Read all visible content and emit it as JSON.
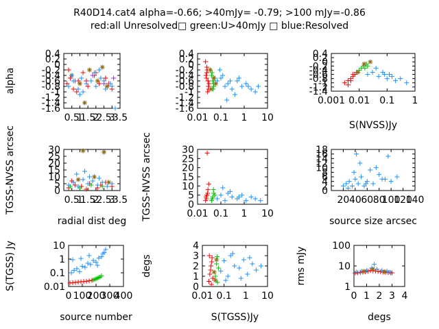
{
  "title_line1": "R40D14.cat4 alpha=-0.66; >40mJy= -0.79; >100 mJy=-0.86",
  "title_line2": "red:all Unresolved□ green:U>40mJy □ blue:Resolved",
  "colors": {
    "red": "#ff0000",
    "green": "#00c000",
    "blue": "#1e90ff",
    "olive": "#8b6914",
    "purple": "#a020f0"
  },
  "chart_data": [
    {
      "type": "scatter",
      "ylabel": "alpha",
      "xlabel": "",
      "x_ticks": [
        "0.5",
        "1",
        "1.5",
        "2",
        "2.5",
        "3",
        "3.5"
      ],
      "y_ticks": [
        "0.4",
        "0.2",
        "0",
        "-0.2",
        "-0.4",
        "-0.6",
        "-0.8",
        "-1",
        "-1.2",
        "-1.4",
        "-1.6"
      ],
      "xlim": [
        0,
        3.5
      ],
      "ylim": [
        -1.6,
        0.4
      ],
      "xscale": "linear",
      "yscale": "linear",
      "series": [
        {
          "color": "red",
          "x": [
            0.2,
            0.4,
            0.6,
            0.9,
            1.2,
            1.5,
            1.9,
            2.2,
            2.6,
            3.0,
            0.3,
            0.8,
            1.4,
            2.0,
            2.8
          ],
          "y": [
            -0.7,
            -0.5,
            -0.9,
            -0.6,
            -0.3,
            -0.8,
            -0.4,
            -0.7,
            -0.5,
            -0.9,
            -0.2,
            -1.0,
            -0.6,
            -0.3,
            -0.7
          ]
        },
        {
          "color": "olive",
          "x": [
            0.5,
            1.0,
            1.6,
            2.1,
            2.7,
            1.3,
            2.4
          ],
          "y": [
            -0.4,
            -0.7,
            -0.2,
            -0.6,
            -0.8,
            -1.4,
            -0.1
          ]
        },
        {
          "color": "purple",
          "x": [
            0.7,
            1.8,
            2.5,
            3.1
          ],
          "y": [
            -0.6,
            -0.4,
            -0.7,
            -0.5
          ]
        },
        {
          "color": "blue",
          "x": [
            0.3,
            0.6,
            0.9,
            1.1,
            1.4,
            1.7,
            2.0,
            2.3,
            2.6,
            2.9,
            3.2,
            0.5,
            1.2,
            1.9,
            2.5,
            3.0,
            1.0,
            2.2
          ],
          "y": [
            -0.8,
            -0.6,
            -0.9,
            -0.5,
            -0.7,
            -0.6,
            -0.8,
            -0.5,
            -0.9,
            -0.7,
            -1.6,
            -0.4,
            -1.0,
            -0.3,
            -0.6,
            -0.8,
            -1.1,
            -0.2
          ]
        }
      ]
    },
    {
      "type": "scatter",
      "ylabel": "",
      "xlabel": "",
      "x_ticks": [
        "0.01",
        "0.1",
        "1",
        "10"
      ],
      "y_ticks": [
        "0.4",
        "0.2",
        "0",
        "-0.2",
        "-0.4",
        "-0.6",
        "-0.8",
        "-1",
        "-1.2",
        "-1.4",
        "-1.6"
      ],
      "xlim": [
        0.01,
        10
      ],
      "ylim": [
        -1.6,
        0.4
      ],
      "xscale": "log",
      "yscale": "linear",
      "series": [
        {
          "color": "red",
          "x": [
            0.022,
            0.025,
            0.028,
            0.03,
            0.024,
            0.026,
            0.029,
            0.023,
            0.027,
            0.031,
            0.025,
            0.028
          ],
          "y": [
            0.1,
            -0.3,
            -0.6,
            -0.9,
            -0.5,
            -0.2,
            -0.8,
            -0.4,
            -1.0,
            -0.7,
            -0.1,
            -0.6
          ]
        },
        {
          "color": "green",
          "x": [
            0.04,
            0.045,
            0.05,
            0.042,
            0.048,
            0.055,
            0.046
          ],
          "y": [
            -0.4,
            -0.6,
            -0.8,
            -0.3,
            -0.7,
            -0.5,
            -0.9
          ]
        },
        {
          "color": "olive",
          "x": [
            0.035,
            0.05,
            0.038,
            0.06
          ],
          "y": [
            -0.2,
            -0.5,
            -0.9,
            -0.7
          ]
        },
        {
          "color": "blue",
          "x": [
            0.07,
            0.1,
            0.15,
            0.2,
            0.3,
            0.5,
            0.8,
            1.2,
            2,
            3,
            4,
            0.12,
            0.25,
            0.4,
            0.6,
            1.5,
            0.09,
            0.18
          ],
          "y": [
            -0.6,
            -0.5,
            -0.8,
            -0.7,
            -0.9,
            -0.6,
            -0.8,
            -0.7,
            -0.9,
            -1.0,
            -0.8,
            -0.4,
            -0.6,
            -1.1,
            -0.5,
            -0.8,
            -0.2,
            -1.3
          ]
        }
      ]
    },
    {
      "type": "scatter",
      "ylabel": "",
      "xlabel": "S(NVSS)Jy",
      "x_ticks": [
        "0.001",
        "0.01",
        "0.1",
        "1"
      ],
      "y_ticks": [
        "0.4",
        "0.2",
        "0",
        "-0.2",
        "-0.4",
        "-0.6",
        "-0.8",
        "-1",
        "-1.2",
        "-1.4"
      ],
      "xlim": [
        0.001,
        1
      ],
      "ylim": [
        -1.4,
        0.4
      ],
      "xscale": "log",
      "yscale": "linear",
      "series": [
        {
          "color": "red",
          "x": [
            0.003,
            0.004,
            0.005,
            0.006,
            0.007,
            0.008,
            0.004,
            0.005,
            0.006
          ],
          "y": [
            -1.0,
            -0.9,
            -0.8,
            -0.7,
            -0.6,
            -0.5,
            -1.1,
            -0.9,
            -0.6
          ]
        },
        {
          "color": "green",
          "x": [
            0.01,
            0.012,
            0.014,
            0.016,
            0.018,
            0.02
          ],
          "y": [
            -0.4,
            -0.3,
            -0.2,
            -0.3,
            -0.1,
            -0.2
          ]
        },
        {
          "color": "olive",
          "x": [
            0.009,
            0.015,
            0.025
          ],
          "y": [
            -0.5,
            -0.1,
            0.0
          ]
        },
        {
          "color": "blue",
          "x": [
            0.02,
            0.03,
            0.05,
            0.08,
            0.1,
            0.15,
            0.2,
            0.3,
            0.5,
            0.04,
            0.07,
            0.12
          ],
          "y": [
            -0.6,
            -0.5,
            -0.7,
            -0.6,
            -0.8,
            -0.7,
            -0.9,
            -0.8,
            -1.0,
            -0.3,
            -0.5,
            -0.6
          ]
        }
      ]
    },
    {
      "type": "scatter",
      "ylabel": "TGSS-NVSS arcsec",
      "xlabel": "radial dist deg",
      "x_ticks": [
        "0.5",
        "1",
        "1.5",
        "2",
        "2.5",
        "3",
        "3.5"
      ],
      "y_ticks": [
        "0",
        "5",
        "10",
        "15",
        "20",
        "25",
        "30"
      ],
      "xlim": [
        0,
        3.5
      ],
      "ylim": [
        0,
        30
      ],
      "xscale": "linear",
      "yscale": "linear",
      "series": [
        {
          "color": "red",
          "x": [
            0.3,
            0.7,
            1.1,
            1.6,
            2.1,
            2.6,
            3.0,
            0.5,
            1.4,
            2.3
          ],
          "y": [
            2,
            4,
            3,
            5,
            2,
            6,
            3,
            7,
            1,
            4
          ]
        },
        {
          "color": "olive",
          "x": [
            1.2,
            1.9,
            2.8,
            0.9,
            2.5
          ],
          "y": [
            29,
            10,
            6,
            8,
            28
          ]
        },
        {
          "color": "green",
          "x": [
            0.4,
            1.0,
            1.7,
            2.4
          ],
          "y": [
            3,
            2,
            4,
            3
          ]
        },
        {
          "color": "blue",
          "x": [
            0.3,
            0.6,
            0.9,
            1.2,
            1.5,
            1.8,
            2.1,
            2.4,
            2.7,
            3.0,
            0.8,
            1.6,
            2.2,
            1.3
          ],
          "y": [
            4,
            6,
            3,
            8,
            5,
            7,
            4,
            6,
            3,
            5,
            12,
            10,
            9,
            14
          ]
        }
      ]
    },
    {
      "type": "scatter",
      "ylabel": "TGSS-NVSS arcsec",
      "xlabel": "",
      "x_ticks": [
        "0.01",
        "0.1",
        "1",
        "10"
      ],
      "y_ticks": [
        "0",
        "5",
        "10",
        "15",
        "20",
        "25",
        "30"
      ],
      "xlim": [
        0.01,
        10
      ],
      "ylim": [
        0,
        30
      ],
      "xscale": "log",
      "yscale": "linear",
      "series": [
        {
          "color": "red",
          "x": [
            0.022,
            0.025,
            0.028,
            0.03,
            0.024,
            0.027,
            0.026,
            0.023
          ],
          "y": [
            2,
            5,
            8,
            11,
            3,
            6,
            28,
            4
          ]
        },
        {
          "color": "green",
          "x": [
            0.04,
            0.045,
            0.05,
            0.042,
            0.048,
            0.055
          ],
          "y": [
            2,
            4,
            6,
            3,
            8,
            5
          ]
        },
        {
          "color": "blue",
          "x": [
            0.07,
            0.1,
            0.15,
            0.2,
            0.3,
            0.5,
            0.8,
            1.2,
            2,
            3,
            5,
            0.12,
            0.25,
            0.6
          ],
          "y": [
            3,
            5,
            2,
            6,
            4,
            3,
            5,
            2,
            4,
            3,
            2,
            9,
            7,
            4
          ]
        }
      ]
    },
    {
      "type": "scatter",
      "ylabel": "",
      "xlabel": "source size arcsec",
      "x_ticks": [
        "20",
        "40",
        "60",
        "80",
        "100",
        "120",
        "140"
      ],
      "y_ticks": [
        "0",
        "2",
        "4",
        "6",
        "8",
        "10",
        "12",
        "14",
        "16",
        "18"
      ],
      "xlim": [
        0,
        140
      ],
      "ylim": [
        0,
        18
      ],
      "xscale": "linear",
      "yscale": "linear",
      "series": [
        {
          "color": "blue",
          "x": [
            20,
            25,
            30,
            35,
            40,
            45,
            50,
            55,
            60,
            70,
            80,
            90,
            100,
            110,
            28,
            38,
            48,
            58,
            75,
            95,
            42,
            65,
            85
          ],
          "y": [
            2,
            3,
            4,
            2,
            5,
            3,
            6,
            2,
            4,
            3,
            7,
            5,
            4,
            6,
            1,
            8,
            12,
            3,
            10,
            15,
            16,
            9,
            5
          ]
        }
      ]
    },
    {
      "type": "scatter",
      "ylabel": "S(TGSS) Jy",
      "xlabel": "source number",
      "x_ticks": [
        "0",
        "100",
        "200",
        "300",
        "400"
      ],
      "y_ticks": [
        "0.01",
        "0.1",
        "1",
        "10"
      ],
      "xlim": [
        0,
        400
      ],
      "ylim": [
        0.01,
        10
      ],
      "xscale": "linear",
      "yscale": "log",
      "series": [
        {
          "color": "red",
          "x": [
            10,
            30,
            50,
            70,
            90,
            110,
            130,
            150,
            170
          ],
          "y": [
            0.018,
            0.019,
            0.02,
            0.021,
            0.022,
            0.023,
            0.024,
            0.026,
            0.028
          ]
        },
        {
          "color": "green",
          "x": [
            180,
            190,
            200,
            210,
            220,
            230,
            240
          ],
          "y": [
            0.03,
            0.033,
            0.036,
            0.04,
            0.045,
            0.05,
            0.06
          ]
        },
        {
          "color": "blue",
          "x": [
            20,
            40,
            60,
            80,
            100,
            120,
            140,
            160,
            180,
            200,
            220,
            240,
            250,
            260,
            270,
            30,
            90,
            150,
            210
          ],
          "y": [
            0.1,
            0.15,
            0.2,
            0.12,
            0.3,
            0.25,
            0.5,
            0.4,
            0.8,
            0.6,
            1.2,
            1.5,
            2.5,
            3,
            5,
            0.9,
            1.1,
            1.8,
            0.35
          ]
        }
      ]
    },
    {
      "type": "scatter",
      "ylabel": "degs",
      "xlabel": "S(TGSS)Jy",
      "x_ticks": [
        "0.01",
        "0.1",
        "1",
        "10"
      ],
      "y_ticks": [
        "0",
        "1",
        "2",
        "3",
        "4"
      ],
      "xlim": [
        0.01,
        10
      ],
      "ylim": [
        0,
        4
      ],
      "xscale": "log",
      "yscale": "linear",
      "series": [
        {
          "color": "red",
          "x": [
            0.02,
            0.022,
            0.025,
            0.028,
            0.03,
            0.024,
            0.027,
            0.021,
            0.026
          ],
          "y": [
            0.5,
            1.2,
            2.0,
            2.8,
            0.8,
            1.6,
            2.4,
            3.0,
            0.2
          ]
        },
        {
          "color": "olive",
          "x": [
            0.035,
            0.045,
            0.04
          ],
          "y": [
            1.4,
            2.6,
            0.6
          ]
        },
        {
          "color": "green",
          "x": [
            0.04,
            0.045,
            0.05,
            0.055,
            0.048
          ],
          "y": [
            1.0,
            2.2,
            0.4,
            1.8,
            2.9
          ]
        },
        {
          "color": "blue",
          "x": [
            0.07,
            0.1,
            0.15,
            0.2,
            0.3,
            0.5,
            0.8,
            1.2,
            2,
            3,
            5,
            0.12,
            0.25,
            0.6,
            1.5
          ],
          "y": [
            1.5,
            2.5,
            1.0,
            3.0,
            2.0,
            1.8,
            2.6,
            1.2,
            2.2,
            1.6,
            2.0,
            0.6,
            3.2,
            0.8,
            2.8
          ]
        }
      ]
    },
    {
      "type": "scatter",
      "ylabel": "rms mJy",
      "xlabel": "degs",
      "x_ticks": [
        "0",
        "1",
        "2",
        "3",
        "4"
      ],
      "y_ticks": [
        "1",
        "10",
        "100"
      ],
      "xlim": [
        0,
        4
      ],
      "ylim": [
        1,
        100
      ],
      "xscale": "linear",
      "yscale": "log",
      "series": [
        {
          "color": "red",
          "x": [
            0.1,
            0.3,
            0.5,
            0.7,
            0.9,
            1.1,
            1.3,
            1.5,
            1.7,
            1.9,
            2.1,
            2.3,
            2.5,
            2.7,
            2.9,
            3.0
          ],
          "y": [
            4.5,
            4.6,
            4.8,
            5.0,
            5.2,
            5.5,
            6.0,
            5.8,
            5.6,
            5.4,
            5.2,
            5.0,
            4.9,
            4.8,
            4.7,
            4.6
          ]
        },
        {
          "color": "blue",
          "x": [
            0.2,
            0.6,
            1.0,
            1.4,
            1.6,
            1.8,
            2.2,
            2.6,
            2.8
          ],
          "y": [
            5,
            5.5,
            6,
            8,
            12,
            7,
            6,
            5.5,
            5
          ]
        },
        {
          "color": "olive",
          "x": [
            0.8,
            1.5,
            2.4
          ],
          "y": [
            5.5,
            7,
            5.2
          ]
        }
      ]
    }
  ]
}
